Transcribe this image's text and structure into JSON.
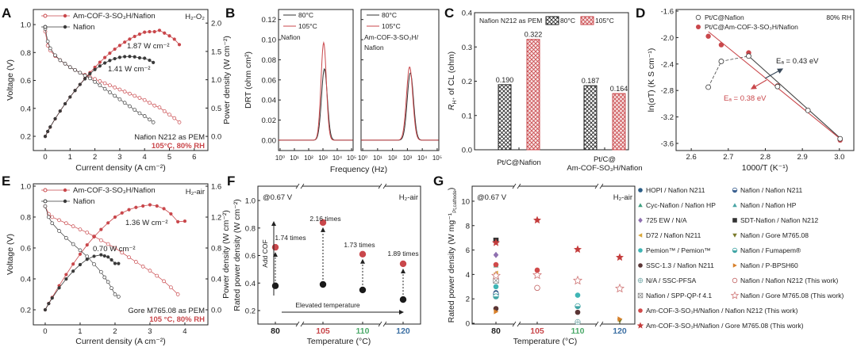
{
  "panels": [
    "A",
    "B",
    "C",
    "D",
    "E",
    "F",
    "G"
  ],
  "colors": {
    "red": "#c9474b",
    "dark": "#3a3a3a",
    "t105": "#c9474b",
    "t110": "#4caa6a",
    "t120": "#3b6fa3"
  },
  "chart_data": [
    {
      "panel": "A",
      "type": "line",
      "xlabel": "Current density (A cm⁻²)",
      "ylabel": "Voltage (V)",
      "y2label": "Power density (W cm⁻²)",
      "xlim": [
        -0.48,
        6.55
      ],
      "ylim": [
        0.098,
        1.108
      ],
      "y2lim": [
        -0.25,
        2.24
      ],
      "xticks": [
        "0",
        "1",
        "2",
        "3",
        "4",
        "5",
        "6"
      ],
      "yticks": [
        "0.2",
        "0.4",
        "0.6",
        "0.8",
        "1.0"
      ],
      "y2ticks": [
        "0.0",
        "0.5",
        "1.0",
        "1.5",
        "2.0"
      ],
      "legend": [
        "Am-COF-3-SO₃H/Nafion",
        "Nafion"
      ],
      "legend_position": "top-left",
      "condition": "H₂-O₂",
      "annotations": [
        "1.87 W cm⁻²",
        "1.41 W cm⁻²"
      ],
      "note": "Nafion N212 as PEM",
      "note2": "105°C, 80% RH",
      "series": [
        {
          "name": "Am-COF-3-SO₃H/Nafion",
          "color": "#c9474b",
          "current": [
            0,
            0.1,
            0.2,
            0.4,
            0.6,
            0.8,
            1.0,
            1.2,
            1.4,
            1.6,
            1.8,
            2.0,
            2.2,
            2.4,
            2.6,
            2.8,
            3.0,
            3.2,
            3.4,
            3.6,
            3.8,
            4.0,
            4.2,
            4.4,
            4.6,
            4.8,
            5.0,
            5.2,
            5.4
          ],
          "voltage": [
            0.95,
            0.85,
            0.815,
            0.775,
            0.745,
            0.72,
            0.695,
            0.675,
            0.655,
            0.64,
            0.625,
            0.61,
            0.595,
            0.58,
            0.565,
            0.55,
            0.535,
            0.52,
            0.505,
            0.49,
            0.475,
            0.46,
            0.44,
            0.42,
            0.407,
            0.38,
            0.355,
            0.33,
            0.3
          ],
          "peak_power": 1.87
        },
        {
          "name": "Nafion",
          "color": "#3a3a3a",
          "current": [
            0,
            0.1,
            0.2,
            0.4,
            0.6,
            0.8,
            1.0,
            1.2,
            1.4,
            1.6,
            1.8,
            2.0,
            2.2,
            2.4,
            2.6,
            2.8,
            3.0,
            3.2,
            3.4,
            3.6,
            3.8,
            4.0,
            4.2,
            4.35
          ],
          "voltage": [
            0.97,
            0.88,
            0.83,
            0.78,
            0.745,
            0.72,
            0.695,
            0.675,
            0.655,
            0.635,
            0.615,
            0.59,
            0.565,
            0.54,
            0.515,
            0.49,
            0.465,
            0.44,
            0.415,
            0.39,
            0.365,
            0.345,
            0.32,
            0.3
          ],
          "peak_power": 1.41
        }
      ]
    },
    {
      "panel": "B",
      "type": "line",
      "xlabel": "Frequency (Hz)",
      "ylabel": "DRT (ohm cm²)",
      "xscale": "log",
      "xlim_log10": [
        -0.11,
        5.11
      ],
      "ylim": [
        -0.0103,
        0.13
      ],
      "xticks": [
        "10⁰",
        "10¹",
        "10²",
        "10³",
        "10⁴",
        "10⁵"
      ],
      "yticks": [
        "0.00",
        "0.02",
        "0.04",
        "0.06",
        "0.08",
        "0.10",
        "0.12"
      ],
      "subplots": [
        {
          "title": "Nafion",
          "legend": [
            "80°C",
            "105°C"
          ],
          "series": [
            {
              "name": "80°C",
              "color": "#333333",
              "peak_log10_freq": 3.1,
              "peak_value": 0.071,
              "width_decades": 0.27
            },
            {
              "name": "105°C",
              "color": "#c9474b",
              "peak_log10_freq": 3.05,
              "peak_value": 0.097,
              "width_decades": 0.25
            }
          ]
        },
        {
          "title": "Am-COF-3-SO₃H/",
          "title2": "Nafion",
          "legend": [
            "80°C",
            "105°C"
          ],
          "series": [
            {
              "name": "80°C",
              "color": "#333333",
              "peak_log10_freq": 3.2,
              "peak_value": 0.067,
              "width_decades": 0.28
            },
            {
              "name": "105°C",
              "color": "#c9474b",
              "peak_log10_freq": 3.15,
              "peak_value": 0.073,
              "width_decades": 0.28
            }
          ]
        }
      ]
    },
    {
      "panel": "C",
      "type": "bar",
      "ylabel": "R_H+ of CL (ohm)",
      "ylabel_main": "R",
      "ylabel_sub": "H⁺",
      "ylabel_rest": " of CL (ohm)",
      "ylim": [
        0,
        0.4
      ],
      "yticks": [
        "0.0",
        "0.1",
        "0.2",
        "0.3",
        "0.4"
      ],
      "note": "Nafion N212 as PEM",
      "categories": [
        "Pt/C@Nafion",
        "Pt/C@ Am-COF-SO₃H/Nafion"
      ],
      "category_lines": [
        [
          "Pt/C@Nafion"
        ],
        [
          "Pt/C@",
          "Am-COF-SO₃H/Nafion"
        ]
      ],
      "series": [
        {
          "name": "80°C",
          "color": "#222222",
          "values": [
            0.19,
            0.187
          ],
          "labels": [
            "0.190",
            "0.187"
          ]
        },
        {
          "name": "105°C",
          "color": "#c9474b",
          "values": [
            0.322,
            0.164
          ],
          "labels": [
            "0.322",
            "0.164"
          ]
        }
      ],
      "legend_position": "top-right"
    },
    {
      "panel": "D",
      "type": "scatter",
      "xlabel": "1000/T (K⁻¹)",
      "ylabel": "ln(σT) (K S cm⁻¹)",
      "xlim": [
        2.559,
        3.039
      ],
      "ylim": [
        -3.708,
        -1.576
      ],
      "xticks": [
        "2.6",
        "2.7",
        "2.8",
        "2.9",
        "3.0"
      ],
      "yticks": [
        "-3.6",
        "-3.2",
        "-2.8",
        "-2.4",
        "-2.0",
        "-1.6"
      ],
      "condition": "80% RH",
      "series": [
        {
          "name": "Pt/C@Nafion",
          "color": "#3a3a3a",
          "marker": "open-circle",
          "x": [
            2.646,
            2.681,
            2.755,
            2.833,
            2.915,
            3.002
          ],
          "y": [
            -2.75,
            -2.36,
            -2.28,
            -2.74,
            -3.1,
            -3.53
          ],
          "fit": {
            "x": [
              2.755,
              3.002
            ],
            "y": [
              -2.28,
              -3.52
            ]
          },
          "ea_label": "Eₐ = 0.43 eV"
        },
        {
          "name": "Pt/C@Am-COF-3-SO₃H/Nafion",
          "color": "#c9474b",
          "marker": "circle",
          "x": [
            2.646,
            2.681,
            2.755,
            2.833,
            2.915,
            3.002
          ],
          "y": [
            -1.98,
            -2.11,
            -2.23,
            -2.73,
            -3.1,
            -3.55
          ],
          "fit": {
            "x": [
              2.646,
              3.0
            ],
            "y": [
              -1.91,
              -3.52
            ]
          },
          "ea_label": "Eₐ = 0.38 eV"
        }
      ]
    },
    {
      "panel": "E",
      "type": "line",
      "xlabel": "Current density (A cm⁻²)",
      "ylabel": "Voltage (V)",
      "y2label": "Power density (W cm⁻²)",
      "xlim": [
        -0.34,
        4.66
      ],
      "ylim": [
        0.1026,
        1.015
      ],
      "y2lim": [
        -0.195,
        1.631
      ],
      "xticks": [
        "0",
        "1",
        "2",
        "3",
        "4"
      ],
      "yticks": [
        "0.2",
        "0.4",
        "0.6",
        "0.8",
        "1.0"
      ],
      "y2ticks": [
        "0.0",
        "0.4",
        "0.8",
        "1.2",
        "1.6"
      ],
      "legend": [
        "Am-COF-3-SO₃H/Nafion",
        "Nafion"
      ],
      "legend_position": "top-left",
      "condition": "H₂-air",
      "annotations": [
        "1.36 W cm⁻²",
        "0.70 W cm⁻²"
      ],
      "note": "Gore M765.08 as PEM",
      "note2": "105 °C, 80% RH",
      "series": [
        {
          "name": "Am-COF-3-SO₃H/Nafion",
          "color": "#c9474b",
          "current": [
            0,
            0.1,
            0.2,
            0.4,
            0.6,
            0.8,
            1.0,
            1.2,
            1.4,
            1.6,
            1.8,
            2.0,
            2.2,
            2.4,
            2.6,
            2.8,
            3.0,
            3.2,
            3.4,
            3.6,
            3.8,
            4.0
          ],
          "voltage": [
            0.87,
            0.82,
            0.8,
            0.78,
            0.76,
            0.74,
            0.72,
            0.7,
            0.675,
            0.65,
            0.625,
            0.6,
            0.57,
            0.54,
            0.51,
            0.48,
            0.453,
            0.42,
            0.385,
            0.345,
            0.3,
            0.287
          ],
          "peak_power": 1.36
        },
        {
          "name": "Nafion",
          "color": "#3a3a3a",
          "current": [
            0,
            0.1,
            0.2,
            0.4,
            0.6,
            0.8,
            1.0,
            1.2,
            1.4,
            1.6,
            1.7,
            1.8,
            1.9,
            2.0,
            2.1
          ],
          "voltage": [
            0.87,
            0.8,
            0.76,
            0.71,
            0.665,
            0.625,
            0.585,
            0.545,
            0.495,
            0.445,
            0.41,
            0.38,
            0.34,
            0.3,
            0.285
          ],
          "peak_power": 0.7
        }
      ]
    },
    {
      "panel": "F",
      "type": "scatter",
      "xlabel": "Temperature (°C)",
      "ylabel": "Rated power density (W cm⁻²)",
      "ylim": [
        0.102,
        1.104
      ],
      "yticks": [
        "0.2",
        "0.4",
        "0.6",
        "0.8",
        "1.0"
      ],
      "categories": [
        "80",
        "105",
        "110",
        "120"
      ],
      "condition": "@0.67 V",
      "condition2": "H₂-air",
      "arrow_labels": [
        "Add COF",
        "Elevated temperature"
      ],
      "ratio_labels": [
        "1.74 times",
        "2.16 times",
        "1.73 times",
        "1.89 times"
      ],
      "series": [
        {
          "name": "Nafion",
          "color": "#1a1a1a",
          "values": [
            0.38,
            0.39,
            0.35,
            0.28
          ]
        },
        {
          "name": "Am-COF-3-SO₃H/Nafion",
          "color": "#c9474b",
          "values": [
            0.66,
            0.84,
            0.61,
            0.54
          ]
        }
      ]
    },
    {
      "panel": "G",
      "type": "scatter",
      "xlabel": "Temperature (°C)",
      "ylabel": "Rated power density (W mg⁻¹",
      "ylabel_sub": "Pt,cathode",
      "ylabel_end": ")",
      "ylim": [
        -0.065,
        11.23
      ],
      "yticks": [
        "0",
        "2",
        "4",
        "6",
        "8",
        "10"
      ],
      "categories": [
        "80",
        "105",
        "110",
        "120"
      ],
      "condition": "@0.67 V",
      "condition2": "H₂-air",
      "legend_position": "right",
      "series": [
        {
          "name": "HOPI / Nafion N211",
          "color": "#2b5d86",
          "marker": "circle",
          "points": [
            [
              80,
              2.5
            ]
          ]
        },
        {
          "name": "Nafion / Nafion N211",
          "color": "#3a6090",
          "marker": "half-circle",
          "points": [
            [
              80,
              2.4
            ]
          ]
        },
        {
          "name": "Cyc-Nafion / Nafion HP",
          "color": "#3f9f7f",
          "marker": "triangle-up",
          "points": [
            [
              80,
              4.75
            ]
          ]
        },
        {
          "name": "Nafion / Nafion HP",
          "color": "#4aa5a5",
          "marker": "triangle-up",
          "points": [
            [
              80,
              3.6
            ]
          ]
        },
        {
          "name": "725 EW / N/A",
          "color": "#8f70b0",
          "marker": "diamond",
          "points": [
            [
              80,
              5.6
            ]
          ]
        },
        {
          "name": "SDT-Nafion / Nafion N212",
          "color": "#333333",
          "marker": "square",
          "points": [
            [
              80,
              6.8
            ]
          ]
        },
        {
          "name": "D72 / Nafion N211",
          "color": "#d9a73a",
          "marker": "triangle-left",
          "points": [
            [
              80,
              4.1
            ]
          ]
        },
        {
          "name": "Nafion / Gore M765.08",
          "color": "#7a7a2a",
          "marker": "triangle-down",
          "points": [
            [
              80,
              3.7
            ],
            [
              120,
              0.2
            ]
          ]
        },
        {
          "name": "Pemion™ / Pemion™",
          "color": "#3fb5b5",
          "marker": "circle",
          "points": [
            [
              80,
              3.0
            ],
            [
              110,
              2.3
            ]
          ]
        },
        {
          "name": "Nafion / Fumapem®",
          "color": "#40a5a5",
          "marker": "half-circle",
          "points": [
            [
              80,
              2.2
            ],
            [
              110,
              1.4
            ]
          ]
        },
        {
          "name": "SSC-1.3 / Nafion N211",
          "color": "#5a3535",
          "marker": "circle",
          "points": [
            [
              80,
              1.2
            ],
            [
              110,
              0.9
            ]
          ]
        },
        {
          "name": "Nafion / P-BPSH60",
          "color": "#d8802a",
          "marker": "triangle-right",
          "points": [
            [
              80,
              0.95
            ],
            [
              120,
              0.35
            ]
          ]
        },
        {
          "name": "N/A / SSC-PFSA",
          "color": "#7fb0b0",
          "marker": "cross-circle",
          "points": [
            [
              110,
              0.1
            ]
          ]
        },
        {
          "name": "Nafion / Nafion N212 (This work)",
          "color": "#c06060",
          "marker": "open-circle",
          "points": [
            [
              105,
              2.9
            ]
          ]
        },
        {
          "name": "Nafion / SPP-QP-f 4.1",
          "color": "#888888",
          "marker": "x-square",
          "points": [
            [
              80,
              3.5
            ]
          ]
        },
        {
          "name": "Nafion / Gore M765.08 (This work)",
          "color": "#d07878",
          "marker": "open-star",
          "points": [
            [
              80,
              3.9
            ],
            [
              105,
              3.95
            ],
            [
              110,
              3.5
            ],
            [
              120,
              2.85
            ]
          ]
        },
        {
          "name": "Am-COF-3-SO₃H/Nafion / Nafion N212 (This work)",
          "color": "#d04a4a",
          "marker": "circle",
          "points": [
            [
              80,
              4.8
            ],
            [
              105,
              4.35
            ]
          ]
        },
        {
          "name": "Am-COF-3-SO₃H/Nafion / Gore M765.08 (This work)",
          "color": "#c43c3c",
          "marker": "star",
          "points": [
            [
              80,
              6.6
            ],
            [
              105,
              8.45
            ],
            [
              110,
              6.05
            ],
            [
              120,
              5.4
            ]
          ]
        }
      ]
    }
  ]
}
